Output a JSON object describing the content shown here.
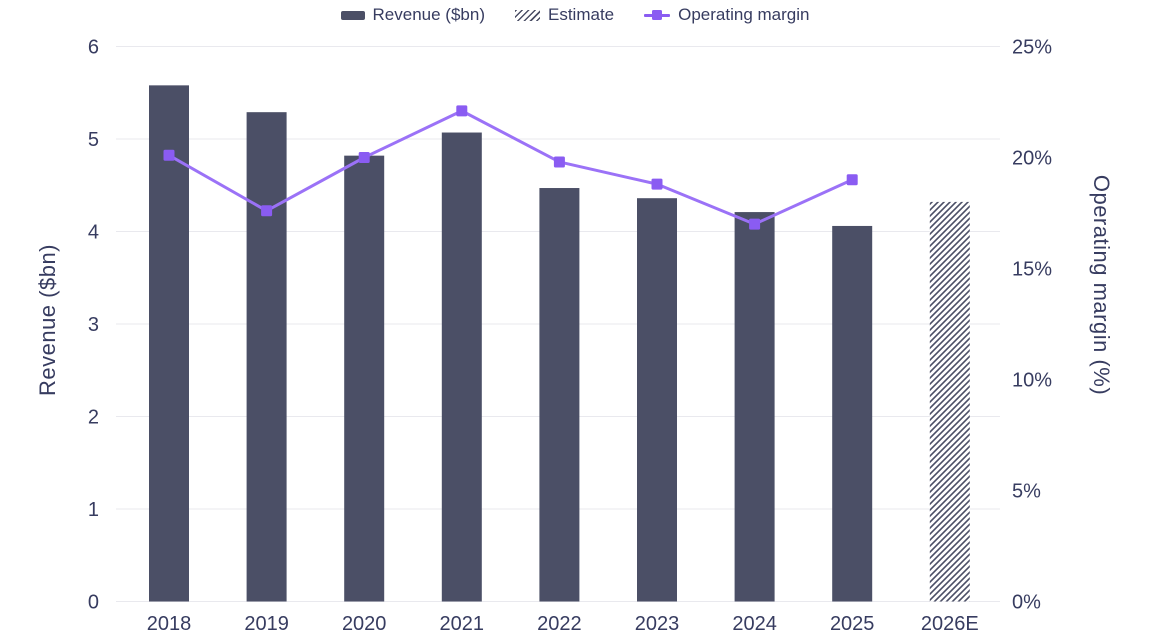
{
  "chart_data": {
    "type": "combo",
    "categories": [
      "2018",
      "2019",
      "2020",
      "2021",
      "2022",
      "2023",
      "2024",
      "2025",
      "2026E"
    ],
    "series": [
      {
        "name": "Revenue ($bn)",
        "type": "bar",
        "axis": "left",
        "values": [
          5.58,
          5.29,
          4.82,
          5.07,
          4.47,
          4.36,
          4.21,
          4.06,
          4.32
        ],
        "estimate": [
          false,
          false,
          false,
          false,
          false,
          false,
          false,
          false,
          true
        ]
      },
      {
        "name": "Operating margin",
        "type": "line",
        "axis": "right",
        "values": [
          20.1,
          17.6,
          20,
          22.1,
          19.8,
          18.8,
          17,
          19,
          null
        ]
      }
    ],
    "left_axis": {
      "label": "Revenue ($bn)",
      "ticks": [
        0,
        1,
        2,
        3,
        4,
        5,
        6
      ],
      "range": [
        0,
        6
      ]
    },
    "right_axis": {
      "label": "Operating margin (%)",
      "tick_labels": [
        "0%",
        "5%",
        "10%",
        "15%",
        "20%",
        "25%"
      ],
      "tick_values": [
        0,
        5,
        10,
        15,
        20,
        25
      ],
      "range": [
        0,
        25
      ]
    },
    "legend": {
      "items": [
        {
          "label": "Revenue ($bn)",
          "swatch": "bar"
        },
        {
          "label": "Estimate",
          "swatch": "hatch"
        },
        {
          "label": "Operating margin",
          "swatch": "line"
        }
      ]
    },
    "grid": "horizontal",
    "colors": {
      "bar": "#4b4f66",
      "line": "#9b72f7",
      "marker": "#8a5cf2",
      "grid": "#e9e9ee",
      "text": "#373c60",
      "background": "#ffffff"
    }
  }
}
